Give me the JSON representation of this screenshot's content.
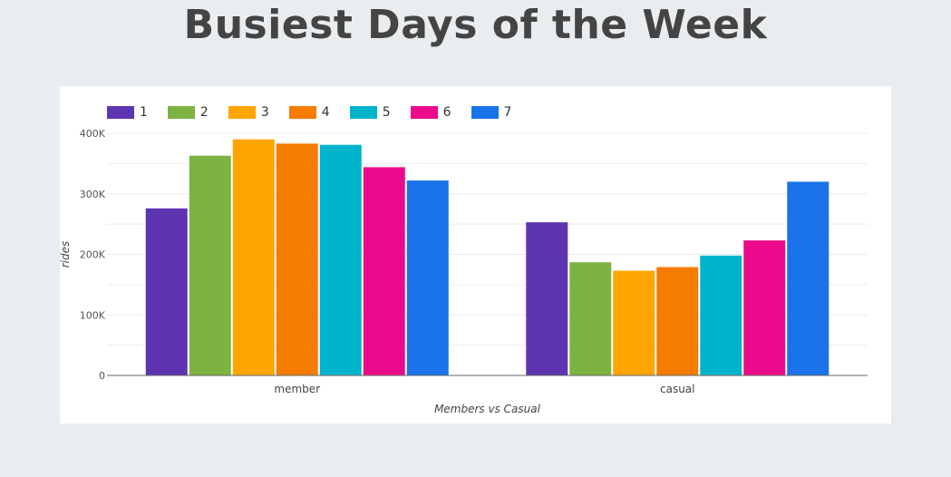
{
  "page": {
    "title": "Busiest Days of the Week"
  },
  "chart_data": {
    "type": "bar",
    "title": "",
    "xlabel": "Members vs Casual",
    "ylabel": "rides",
    "categories": [
      "member",
      "casual"
    ],
    "ylim": [
      0,
      400000
    ],
    "yticks": [
      {
        "value": 0,
        "label": "0"
      },
      {
        "value": 100000,
        "label": "100K"
      },
      {
        "value": 200000,
        "label": "200K"
      },
      {
        "value": 300000,
        "label": "300K"
      },
      {
        "value": 400000,
        "label": "400K"
      }
    ],
    "grid": true,
    "legend": "top-left",
    "series": [
      {
        "name": "1",
        "color": "#5e35b1",
        "values": [
          276000,
          253000
        ]
      },
      {
        "name": "2",
        "color": "#7cb342",
        "values": [
          363000,
          187000
        ]
      },
      {
        "name": "3",
        "color": "#ffa500",
        "values": [
          390000,
          173000
        ]
      },
      {
        "name": "4",
        "color": "#f57c00",
        "values": [
          383000,
          179000
        ]
      },
      {
        "name": "5",
        "color": "#00b4cc",
        "values": [
          381000,
          198000
        ]
      },
      {
        "name": "6",
        "color": "#ec0a8c",
        "values": [
          344000,
          223000
        ]
      },
      {
        "name": "7",
        "color": "#1a73e8",
        "values": [
          322000,
          320000
        ]
      }
    ]
  }
}
